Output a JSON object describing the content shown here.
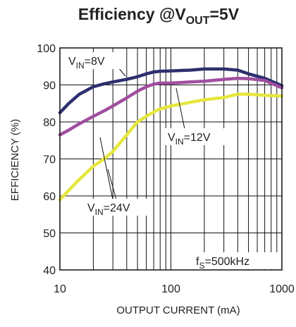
{
  "chart_data": {
    "type": "line",
    "title": {
      "prefix": "Efficiency @V",
      "sub": "OUT",
      "suffix": "=5V"
    },
    "xlabel": "OUTPUT CURRENT (mA)",
    "ylabel": "EFFICIENCY (%)",
    "x_scale": "log",
    "xlim": [
      10,
      1000
    ],
    "ylim": [
      40,
      100
    ],
    "x_ticks": [
      10,
      100,
      1000
    ],
    "x_tick_labels": [
      "10",
      "100",
      "1000"
    ],
    "y_ticks": [
      40,
      50,
      60,
      70,
      80,
      90,
      100
    ],
    "y_tick_labels": [
      "40",
      "50",
      "60",
      "70",
      "80",
      "90",
      "100"
    ],
    "grid": true,
    "series": [
      {
        "label_main": "V",
        "label_sub": "IN",
        "label_rest": "=8V",
        "color": "#2e2f6e",
        "x": [
          10,
          12,
          15,
          20,
          25,
          30,
          40,
          50,
          60,
          70,
          80,
          100,
          150,
          200,
          300,
          400,
          500,
          700,
          1000
        ],
        "y": [
          82.5,
          85,
          87.5,
          89.5,
          90.3,
          90.8,
          91.5,
          92.2,
          93,
          93.5,
          93.7,
          93.8,
          94,
          94.3,
          94.3,
          94,
          93,
          91.8,
          89.8
        ]
      },
      {
        "label_main": "V",
        "label_sub": "IN",
        "label_rest": "=12V",
        "color": "#a04ea0",
        "x": [
          10,
          12,
          15,
          20,
          25,
          30,
          40,
          50,
          60,
          70,
          80,
          100,
          150,
          200,
          300,
          400,
          500,
          700,
          1000
        ],
        "y": [
          76.5,
          77.8,
          79.5,
          81.5,
          83,
          84.3,
          86.5,
          88.3,
          89.5,
          90.2,
          90.5,
          90.5,
          90.8,
          91,
          91.5,
          91.8,
          91.7,
          91.2,
          89.2
        ]
      },
      {
        "label_main": "V",
        "label_sub": "IN",
        "label_rest": "=24V",
        "color": "#e6e63e",
        "x": [
          10,
          12,
          15,
          20,
          25,
          30,
          40,
          50,
          60,
          70,
          80,
          100,
          150,
          200,
          300,
          400,
          500,
          700,
          1000
        ],
        "y": [
          59,
          61.5,
          64.5,
          68,
          70,
          72,
          76.5,
          80,
          81.5,
          82.7,
          83.5,
          84.3,
          85.3,
          86,
          86.6,
          87.5,
          87.5,
          87.2,
          87
        ]
      }
    ],
    "annotation": {
      "main": "f",
      "sub": "S",
      "rest": "=500kHz"
    }
  }
}
